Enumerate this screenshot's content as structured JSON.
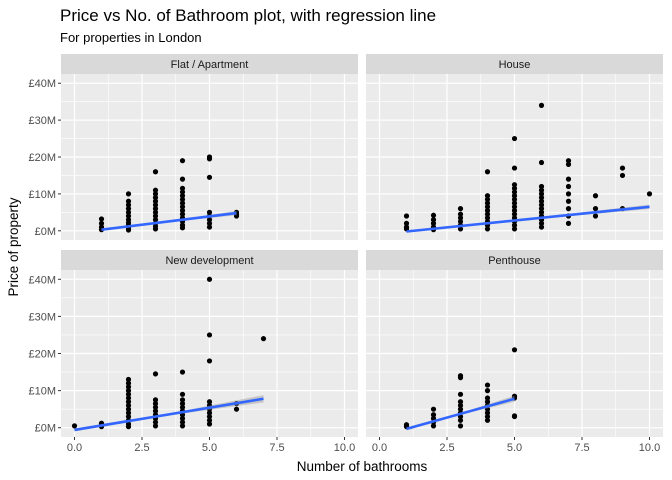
{
  "chart_data": {
    "type": "scatter",
    "title": "Price vs No. of Bathroom plot, with regression line",
    "subtitle": "For properties in London",
    "xlabel": "Number of bathrooms",
    "ylabel": "Price of property",
    "xlim": [
      -0.5,
      10.5
    ],
    "ylim": [
      -2.5,
      42.5
    ],
    "x_ticks": [
      0.0,
      2.5,
      5.0,
      7.5,
      10.0
    ],
    "x_tick_labels": [
      "0.0",
      "2.5",
      "5.0",
      "7.5",
      "10.0"
    ],
    "y_ticks": [
      0,
      10,
      20,
      30,
      40
    ],
    "y_tick_labels": [
      "£0M",
      "£10M",
      "£20M",
      "£30M",
      "£40M"
    ],
    "grid": true,
    "colors": {
      "panel": "#EBEBEB",
      "strip": "#D9D9D9",
      "grid": "#FFFFFF",
      "points": "#000000",
      "line": "#3366FF",
      "band": "#999999"
    },
    "facets": [
      {
        "name": "Flat / Apartment",
        "points": [
          [
            1,
            0.3
          ],
          [
            1,
            1
          ],
          [
            1,
            2
          ],
          [
            1,
            3.2
          ],
          [
            2,
            0.2
          ],
          [
            2,
            0.8
          ],
          [
            2,
            1.5
          ],
          [
            2,
            2.2
          ],
          [
            2,
            3
          ],
          [
            2,
            4
          ],
          [
            2,
            5
          ],
          [
            2,
            6
          ],
          [
            2,
            7
          ],
          [
            2,
            8
          ],
          [
            2,
            10
          ],
          [
            3,
            0.5
          ],
          [
            3,
            1.2
          ],
          [
            3,
            2
          ],
          [
            3,
            3
          ],
          [
            3,
            4
          ],
          [
            3,
            5
          ],
          [
            3,
            6
          ],
          [
            3,
            7
          ],
          [
            3,
            8
          ],
          [
            3,
            9
          ],
          [
            3,
            10
          ],
          [
            3,
            11
          ],
          [
            3,
            16
          ],
          [
            4,
            0.8
          ],
          [
            4,
            1.5
          ],
          [
            4,
            2.5
          ],
          [
            4,
            3.5
          ],
          [
            4,
            4.5
          ],
          [
            4,
            5.5
          ],
          [
            4,
            6.5
          ],
          [
            4,
            7.5
          ],
          [
            4,
            8.5
          ],
          [
            4,
            9.5
          ],
          [
            4,
            10.5
          ],
          [
            4,
            11.5
          ],
          [
            4,
            14
          ],
          [
            4,
            19
          ],
          [
            5,
            1
          ],
          [
            5,
            2
          ],
          [
            5,
            3
          ],
          [
            5,
            4
          ],
          [
            5,
            5
          ],
          [
            5,
            14.5
          ],
          [
            5,
            19.5
          ],
          [
            5,
            20
          ],
          [
            6,
            4
          ],
          [
            6,
            4.5
          ],
          [
            6,
            5
          ]
        ],
        "fit": {
          "x": [
            1,
            6
          ],
          "y": [
            0.3,
            4.8
          ],
          "se": [
            0.3,
            0.6
          ]
        }
      },
      {
        "name": "House",
        "points": [
          [
            1,
            0.5
          ],
          [
            1,
            1
          ],
          [
            1,
            2
          ],
          [
            1,
            4
          ],
          [
            2,
            0.3
          ],
          [
            2,
            1
          ],
          [
            2,
            2
          ],
          [
            2,
            3
          ],
          [
            2,
            4.2
          ],
          [
            3,
            0.5
          ],
          [
            3,
            1.5
          ],
          [
            3,
            2.5
          ],
          [
            3,
            3.5
          ],
          [
            3,
            4.5
          ],
          [
            3,
            6
          ],
          [
            4,
            0.5
          ],
          [
            4,
            1.5
          ],
          [
            4,
            2.5
          ],
          [
            4,
            3.5
          ],
          [
            4,
            4.5
          ],
          [
            4,
            5.5
          ],
          [
            4,
            6.5
          ],
          [
            4,
            7.5
          ],
          [
            4,
            8.5
          ],
          [
            4,
            9.5
          ],
          [
            4,
            16
          ],
          [
            5,
            0.5
          ],
          [
            5,
            1.5
          ],
          [
            5,
            2.5
          ],
          [
            5,
            3.5
          ],
          [
            5,
            4.5
          ],
          [
            5,
            5.5
          ],
          [
            5,
            6.5
          ],
          [
            5,
            7.5
          ],
          [
            5,
            8.5
          ],
          [
            5,
            9.5
          ],
          [
            5,
            10.5
          ],
          [
            5,
            11.5
          ],
          [
            5,
            12.5
          ],
          [
            5,
            17
          ],
          [
            5,
            25
          ],
          [
            6,
            1
          ],
          [
            6,
            2
          ],
          [
            6,
            3
          ],
          [
            6,
            4
          ],
          [
            6,
            5
          ],
          [
            6,
            6
          ],
          [
            6,
            7
          ],
          [
            6,
            8
          ],
          [
            6,
            9
          ],
          [
            6,
            10
          ],
          [
            6,
            11
          ],
          [
            6,
            12
          ],
          [
            6,
            18.5
          ],
          [
            6,
            34
          ],
          [
            7,
            2
          ],
          [
            7,
            4
          ],
          [
            7,
            6
          ],
          [
            7,
            8
          ],
          [
            7,
            10
          ],
          [
            7,
            12
          ],
          [
            7,
            14
          ],
          [
            7,
            18
          ],
          [
            7,
            19
          ],
          [
            8,
            4
          ],
          [
            8,
            6
          ],
          [
            8,
            9.5
          ],
          [
            9,
            6
          ],
          [
            9,
            15
          ],
          [
            9,
            17
          ],
          [
            10,
            10
          ]
        ],
        "fit": {
          "x": [
            1,
            10
          ],
          "y": [
            -0.2,
            6.5
          ],
          "se": [
            0.3,
            0.6
          ]
        }
      },
      {
        "name": "New development",
        "points": [
          [
            0,
            0.5
          ],
          [
            1,
            0.3
          ],
          [
            1,
            0.8
          ],
          [
            1,
            1.2
          ],
          [
            2,
            0.3
          ],
          [
            2,
            1
          ],
          [
            2,
            2
          ],
          [
            2,
            3
          ],
          [
            2,
            4
          ],
          [
            2,
            5
          ],
          [
            2,
            6
          ],
          [
            2,
            7
          ],
          [
            2,
            8
          ],
          [
            2,
            9
          ],
          [
            2,
            10
          ],
          [
            2,
            11
          ],
          [
            2,
            12
          ],
          [
            2,
            13
          ],
          [
            3,
            0.5
          ],
          [
            3,
            1.5
          ],
          [
            3,
            2.5
          ],
          [
            3,
            3.5
          ],
          [
            3,
            4.5
          ],
          [
            3,
            5.5
          ],
          [
            3,
            6.5
          ],
          [
            3,
            7.5
          ],
          [
            3,
            14.5
          ],
          [
            4,
            0.5
          ],
          [
            4,
            1.5
          ],
          [
            4,
            2.5
          ],
          [
            4,
            3.5
          ],
          [
            4,
            4.5
          ],
          [
            4,
            5.5
          ],
          [
            4,
            6.5
          ],
          [
            4,
            7.5
          ],
          [
            4,
            9
          ],
          [
            4,
            15
          ],
          [
            5,
            1
          ],
          [
            5,
            2
          ],
          [
            5,
            3
          ],
          [
            5,
            4
          ],
          [
            5,
            5
          ],
          [
            5,
            6
          ],
          [
            5,
            7
          ],
          [
            5,
            18
          ],
          [
            5,
            25
          ],
          [
            5,
            40
          ],
          [
            6,
            5
          ],
          [
            6,
            6.5
          ],
          [
            7,
            24
          ]
        ],
        "fit": {
          "x": [
            0,
            7
          ],
          "y": [
            -0.6,
            7.8
          ],
          "se": [
            0.4,
            1.0
          ]
        }
      },
      {
        "name": "Penthouse",
        "points": [
          [
            1,
            0.3
          ],
          [
            1,
            0.8
          ],
          [
            2,
            0.5
          ],
          [
            2,
            1.5
          ],
          [
            2,
            2.5
          ],
          [
            2,
            3.5
          ],
          [
            2,
            5
          ],
          [
            3,
            0.5
          ],
          [
            3,
            2
          ],
          [
            3,
            3
          ],
          [
            3,
            4
          ],
          [
            3,
            5
          ],
          [
            3,
            6
          ],
          [
            3,
            7
          ],
          [
            3,
            9
          ],
          [
            3,
            13.5
          ],
          [
            3,
            14
          ],
          [
            4,
            2
          ],
          [
            4,
            3
          ],
          [
            4,
            4
          ],
          [
            4,
            5
          ],
          [
            4,
            6
          ],
          [
            4,
            7
          ],
          [
            4,
            8
          ],
          [
            4,
            10
          ],
          [
            4,
            11.5
          ],
          [
            5,
            3
          ],
          [
            5,
            3.2
          ],
          [
            5,
            8
          ],
          [
            5,
            8.5
          ],
          [
            5,
            21
          ]
        ],
        "fit": {
          "x": [
            1,
            5
          ],
          "y": [
            -0.3,
            7.8
          ],
          "se": [
            0.4,
            0.8
          ]
        }
      }
    ]
  }
}
